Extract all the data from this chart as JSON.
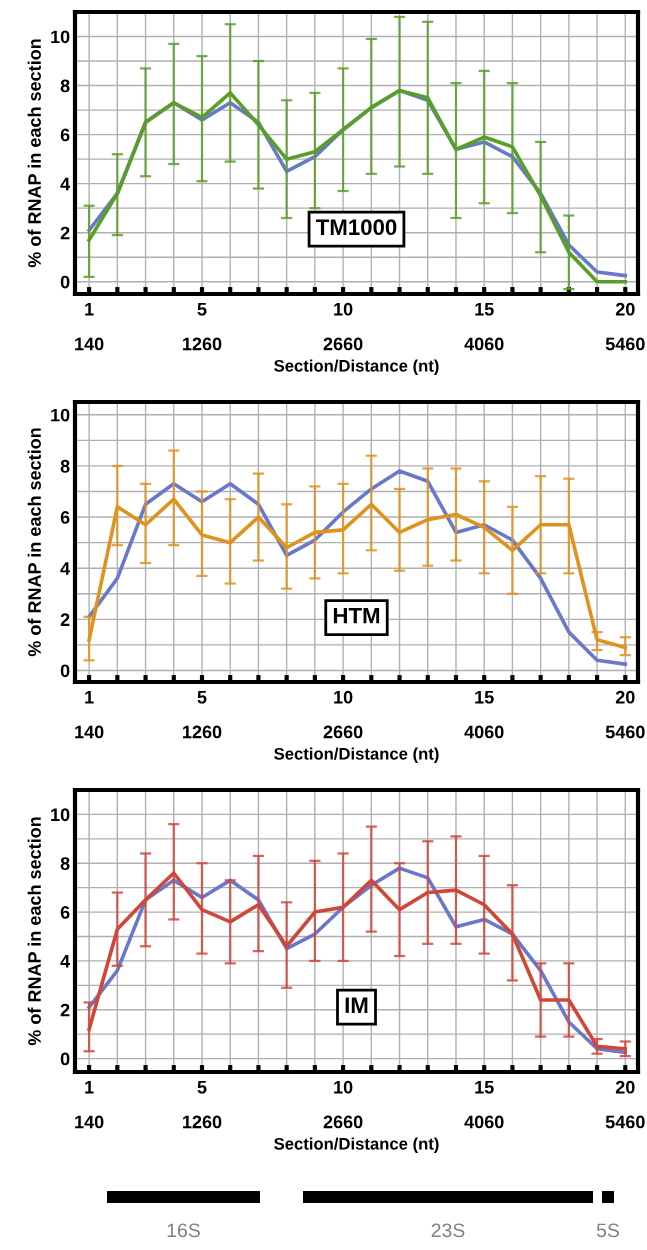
{
  "chart_data": [
    {
      "type": "line",
      "xlabel": "Section/Distance (nt)",
      "ylabel": "% of RNAP in each section",
      "x": [
        1,
        2,
        3,
        4,
        5,
        6,
        7,
        8,
        9,
        10,
        11,
        12,
        13,
        14,
        15,
        16,
        17,
        18,
        19,
        20
      ],
      "series": [
        {
          "color": "#6a78cc",
          "values": [
            2.1,
            3.6,
            6.5,
            7.3,
            6.6,
            7.3,
            6.5,
            4.5,
            5.1,
            6.2,
            7.1,
            7.8,
            7.4,
            5.4,
            5.7,
            5.1,
            3.6,
            1.5,
            0.4,
            0.25
          ]
        },
        {
          "color": "#5a9e2a",
          "values": [
            1.7,
            3.6,
            6.5,
            7.3,
            6.7,
            7.7,
            6.4,
            5.0,
            5.3,
            6.2,
            7.1,
            7.8,
            7.5,
            5.4,
            5.9,
            5.5,
            3.5,
            1.2,
            0.0,
            0.0
          ],
          "errors": [
            [
              0.2,
              3.1
            ],
            [
              1.9,
              5.2
            ],
            [
              4.3,
              8.7
            ],
            [
              4.8,
              9.7
            ],
            [
              4.1,
              9.2
            ],
            [
              4.9,
              10.5
            ],
            [
              3.8,
              9.0
            ],
            [
              2.6,
              7.4
            ],
            [
              3.0,
              7.7
            ],
            [
              3.7,
              8.7
            ],
            [
              4.4,
              9.9
            ],
            [
              4.7,
              10.8
            ],
            [
              4.4,
              10.6
            ],
            [
              2.6,
              8.1
            ],
            [
              3.2,
              8.6
            ],
            [
              2.8,
              8.1
            ],
            [
              1.2,
              5.7
            ],
            [
              -0.3,
              2.7
            ],
            null,
            null
          ]
        }
      ],
      "xlim": [
        0.5,
        20.45
      ],
      "ylim": [
        -0.5,
        11
      ],
      "xticks": [
        1,
        {
          "value": 2,
          "label": null
        },
        {
          "value": 3,
          "label": null
        },
        {
          "value": 4,
          "label": null
        },
        5,
        {
          "value": 6,
          "label": null
        },
        {
          "value": 7,
          "label": null
        },
        {
          "value": 8,
          "label": null
        },
        {
          "value": 9,
          "label": null
        },
        10,
        {
          "value": 11,
          "label": null
        },
        {
          "value": 12,
          "label": null
        },
        {
          "value": 13,
          "label": null
        },
        {
          "value": 14,
          "label": null
        },
        15,
        {
          "value": 16,
          "label": null
        },
        {
          "value": 17,
          "label": null
        },
        {
          "value": 18,
          "label": null
        },
        {
          "value": 19,
          "label": null
        },
        20
      ],
      "x2lim": [
        0,
        5586
      ],
      "x2ticks": [
        140,
        1260,
        2660,
        4060,
        5460
      ],
      "yticks": [
        0,
        {
          "value": 1,
          "label": null
        },
        2,
        {
          "value": 3,
          "label": null
        },
        4,
        {
          "value": 5,
          "label": null
        },
        6,
        {
          "value": 7,
          "label": null
        },
        8,
        {
          "value": 9,
          "label": null
        },
        10
      ],
      "grid": true,
      "legend": false,
      "annotations": [
        "TM1000"
      ]
    },
    {
      "type": "line",
      "xlabel": "Section/Distance (nt)",
      "ylabel": "% of RNAP in each section",
      "x": [
        1,
        2,
        3,
        4,
        5,
        6,
        7,
        8,
        9,
        10,
        11,
        12,
        13,
        14,
        15,
        16,
        17,
        18,
        19,
        20
      ],
      "series": [
        {
          "color": "#6a78cc",
          "values": [
            2.1,
            3.6,
            6.5,
            7.3,
            6.6,
            7.3,
            6.5,
            4.5,
            5.1,
            6.2,
            7.1,
            7.8,
            7.4,
            5.4,
            5.7,
            5.1,
            3.6,
            1.5,
            0.4,
            0.25
          ]
        },
        {
          "color": "#e0921e",
          "values": [
            1.2,
            6.4,
            5.7,
            6.7,
            5.3,
            5.0,
            6.0,
            4.8,
            5.4,
            5.5,
            6.5,
            5.4,
            5.9,
            6.1,
            5.6,
            4.7,
            5.7,
            5.7,
            1.2,
            0.9
          ],
          "errors": [
            [
              0.4,
              2.1
            ],
            [
              4.9,
              8.0
            ],
            [
              4.2,
              7.3
            ],
            [
              4.9,
              8.6
            ],
            [
              3.7,
              7.0
            ],
            [
              3.4,
              6.7
            ],
            [
              4.3,
              7.7
            ],
            [
              3.2,
              6.5
            ],
            [
              3.6,
              7.2
            ],
            [
              3.8,
              7.3
            ],
            [
              4.7,
              8.4
            ],
            [
              3.9,
              7.1
            ],
            [
              4.1,
              7.9
            ],
            [
              4.3,
              7.9
            ],
            [
              3.8,
              7.4
            ],
            [
              3.0,
              6.4
            ],
            [
              3.8,
              7.6
            ],
            [
              3.8,
              7.5
            ],
            [
              0.8,
              1.5
            ],
            [
              0.6,
              1.3
            ]
          ]
        }
      ],
      "xlim": [
        0.5,
        20.45
      ],
      "ylim": [
        -0.45,
        10.5
      ],
      "xticks": [
        1,
        {
          "value": 2,
          "label": null
        },
        {
          "value": 3,
          "label": null
        },
        {
          "value": 4,
          "label": null
        },
        5,
        {
          "value": 6,
          "label": null
        },
        {
          "value": 7,
          "label": null
        },
        {
          "value": 8,
          "label": null
        },
        {
          "value": 9,
          "label": null
        },
        10,
        {
          "value": 11,
          "label": null
        },
        {
          "value": 12,
          "label": null
        },
        {
          "value": 13,
          "label": null
        },
        {
          "value": 14,
          "label": null
        },
        15,
        {
          "value": 16,
          "label": null
        },
        {
          "value": 17,
          "label": null
        },
        {
          "value": 18,
          "label": null
        },
        {
          "value": 19,
          "label": null
        },
        20
      ],
      "x2lim": [
        0,
        5586
      ],
      "x2ticks": [
        140,
        1260,
        2660,
        4060,
        5460
      ],
      "yticks": [
        0,
        {
          "value": 1,
          "label": null
        },
        2,
        {
          "value": 3,
          "label": null
        },
        4,
        {
          "value": 5,
          "label": null
        },
        6,
        {
          "value": 7,
          "label": null
        },
        8,
        {
          "value": 9,
          "label": null
        },
        10
      ],
      "grid": true,
      "legend": false,
      "annotations": [
        "HTM"
      ]
    },
    {
      "type": "line",
      "xlabel": "Section/Distance (nt)",
      "ylabel": "% of RNAP in each section",
      "x": [
        1,
        2,
        3,
        4,
        5,
        6,
        7,
        8,
        9,
        10,
        11,
        12,
        13,
        14,
        15,
        16,
        17,
        18,
        19,
        20
      ],
      "series": [
        {
          "color": "#6a78cc",
          "values": [
            2.1,
            3.6,
            6.5,
            7.3,
            6.6,
            7.3,
            6.5,
            4.5,
            5.1,
            6.2,
            7.1,
            7.8,
            7.4,
            5.4,
            5.7,
            5.1,
            3.6,
            1.5,
            0.4,
            0.25
          ]
        },
        {
          "color": "#d0473a",
          "values": [
            1.2,
            5.3,
            6.5,
            7.6,
            6.1,
            5.6,
            6.3,
            4.6,
            6.0,
            6.2,
            7.3,
            6.1,
            6.8,
            6.9,
            6.3,
            5.1,
            2.4,
            2.4,
            0.5,
            0.4
          ],
          "errors": [
            [
              0.3,
              2.3
            ],
            [
              3.8,
              6.8
            ],
            [
              4.6,
              8.4
            ],
            [
              5.7,
              9.6
            ],
            [
              4.3,
              8.0
            ],
            [
              3.9,
              7.3
            ],
            [
              4.4,
              8.3
            ],
            [
              2.9,
              6.4
            ],
            [
              4.0,
              8.1
            ],
            [
              4.0,
              8.4
            ],
            [
              5.2,
              9.5
            ],
            [
              4.2,
              8.0
            ],
            [
              4.7,
              8.9
            ],
            [
              4.7,
              9.1
            ],
            [
              4.3,
              8.3
            ],
            [
              3.2,
              7.1
            ],
            [
              0.9,
              3.9
            ],
            [
              0.9,
              3.9
            ],
            [
              0.2,
              0.8
            ],
            [
              0.1,
              0.7
            ]
          ]
        }
      ],
      "xlim": [
        0.5,
        20.45
      ],
      "ylim": [
        -0.55,
        11
      ],
      "xticks": [
        1,
        {
          "value": 2,
          "label": null
        },
        {
          "value": 3,
          "label": null
        },
        {
          "value": 4,
          "label": null
        },
        5,
        {
          "value": 6,
          "label": null
        },
        {
          "value": 7,
          "label": null
        },
        {
          "value": 8,
          "label": null
        },
        {
          "value": 9,
          "label": null
        },
        10,
        {
          "value": 11,
          "label": null
        },
        {
          "value": 12,
          "label": null
        },
        {
          "value": 13,
          "label": null
        },
        {
          "value": 14,
          "label": null
        },
        15,
        {
          "value": 16,
          "label": null
        },
        {
          "value": 17,
          "label": null
        },
        {
          "value": 18,
          "label": null
        },
        {
          "value": 19,
          "label": null
        },
        20
      ],
      "x2lim": [
        0,
        5586
      ],
      "x2ticks": [
        140,
        1260,
        2660,
        4060,
        5460
      ],
      "yticks": [
        0,
        {
          "value": 1,
          "label": null
        },
        2,
        {
          "value": 3,
          "label": null
        },
        4,
        {
          "value": 5,
          "label": null
        },
        6,
        {
          "value": 7,
          "label": null
        },
        8,
        {
          "value": 9,
          "label": null
        },
        10
      ],
      "grid": true,
      "legend": false,
      "annotations": [
        "IM",
        "16S",
        "23S",
        "5S"
      ]
    }
  ]
}
